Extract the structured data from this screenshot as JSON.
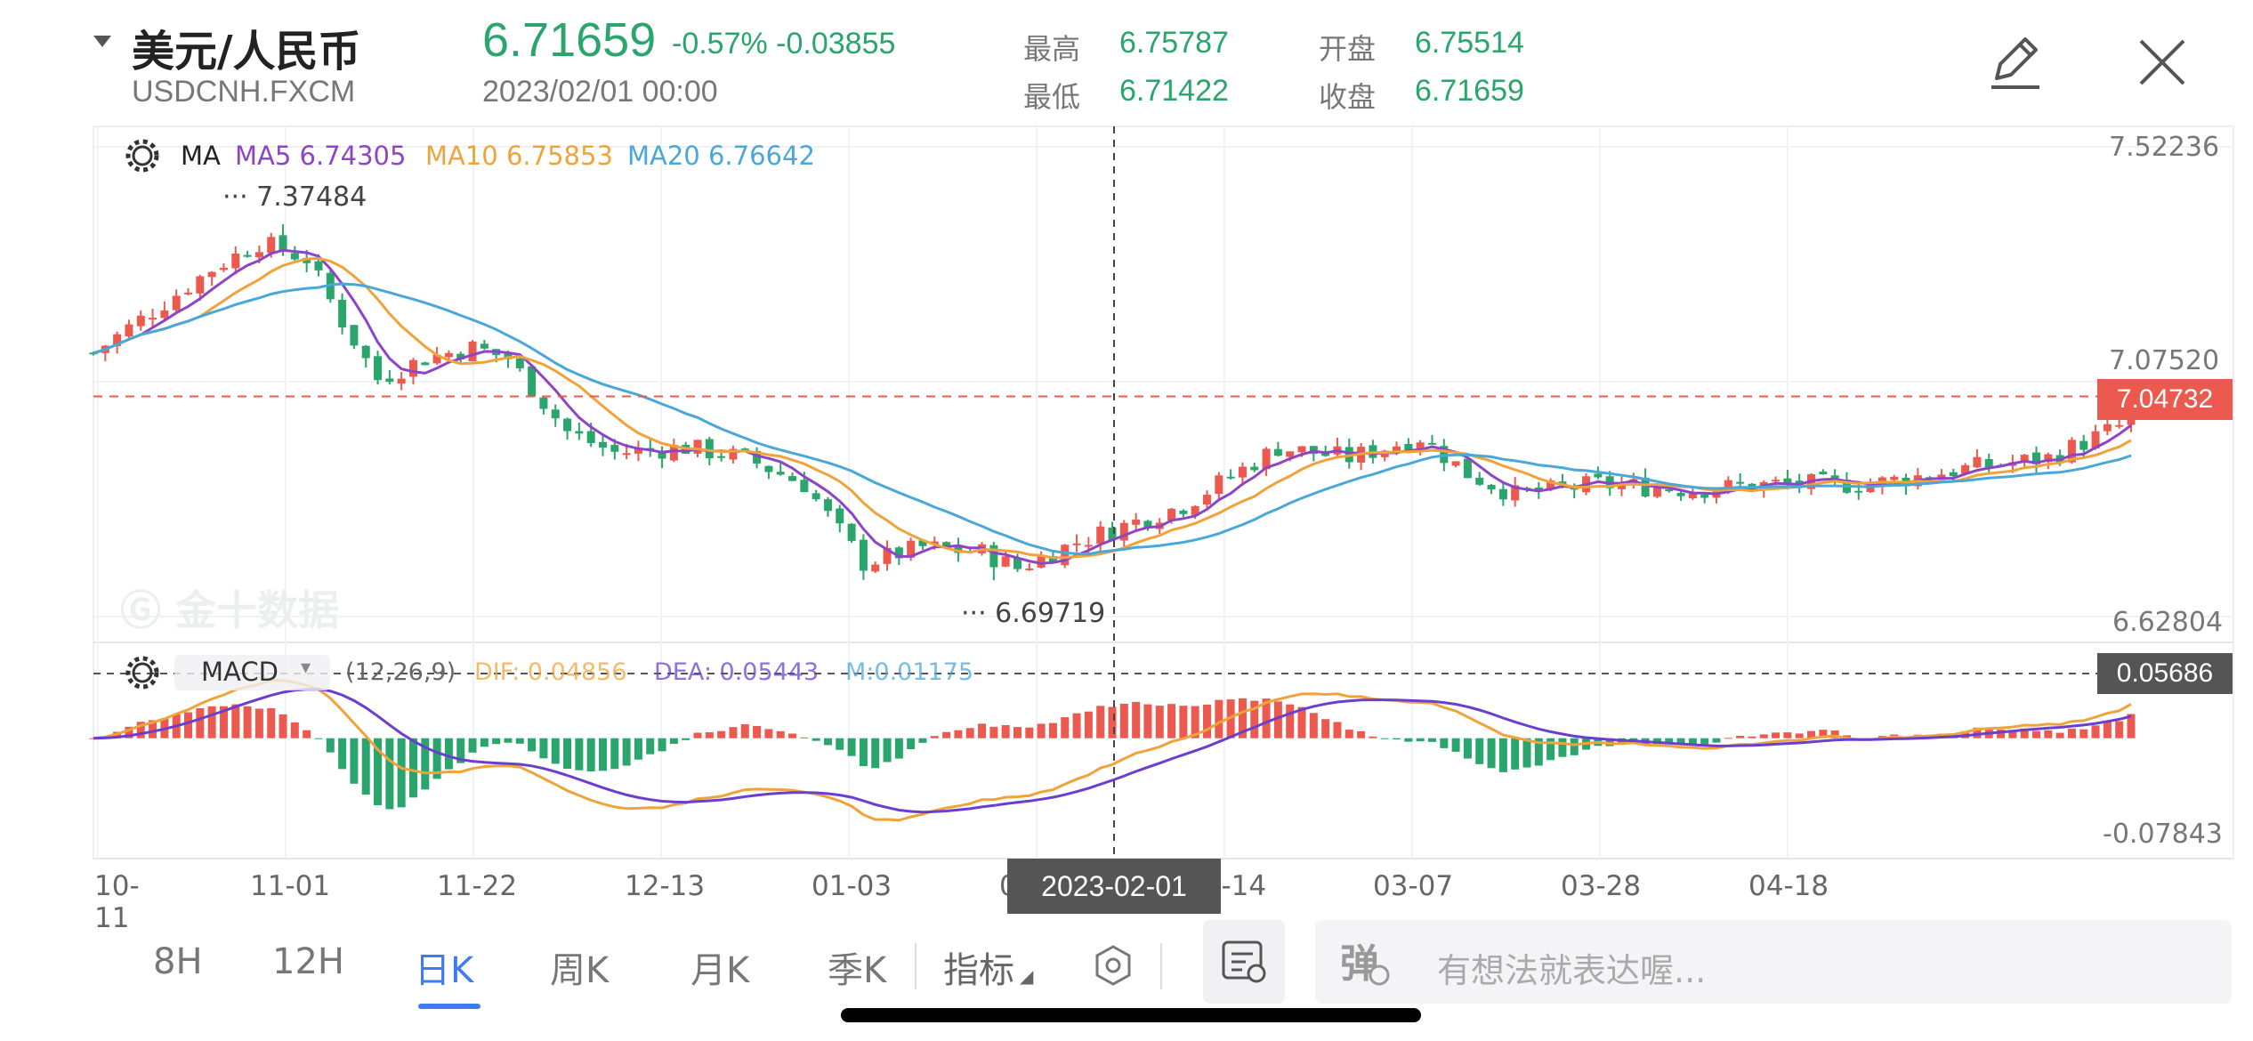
{
  "header": {
    "title": "美元/人民币",
    "symbol": "USDCNH.FXCM",
    "price": "6.71659",
    "change": "-0.57% -0.03855",
    "datetime": "2023/02/01 00:00",
    "stats": {
      "high_label": "最高",
      "high": "6.75787",
      "low_label": "最低",
      "low": "6.71422",
      "open_label": "开盘",
      "open": "6.75514",
      "close_label": "收盘",
      "close": "6.71659"
    }
  },
  "colors": {
    "up": "#ec5a4f",
    "down": "#2aa56c",
    "ma5": "#8e44c6",
    "ma10": "#f0a33a",
    "ma20": "#4aa8d8",
    "macd_dea": "#6a3fd0",
    "accent": "#3d7bf0"
  },
  "chart_data": {
    "type": "candlestick",
    "main": {
      "ma_label": "MA",
      "ma5_label": "MA5 6.74305",
      "ma10_label": "MA10 6.75853",
      "ma20_label": "MA20 6.76642",
      "ylim": [
        6.62804,
        7.52236
      ],
      "y_ticks": [
        "7.52236",
        "7.07520",
        "6.62804"
      ],
      "last_price": 7.04732,
      "last_price_label": "7.04732",
      "max_label": "7.37484",
      "max_value": 7.37484,
      "min_label": "6.69719",
      "min_value": 6.69719,
      "watermark": "金十数据"
    },
    "macd": {
      "label": "MACD",
      "params": "(12,26,9)",
      "dif_label": "DIF: 0.04856",
      "dea_label": "DEA: 0.05443",
      "m_label": "M:0.01175",
      "ylim": [
        -0.07843,
        0.05686
      ],
      "y_ticks": [
        "0.05686",
        "-0.07843"
      ],
      "current_label": "0.05686"
    },
    "x_ticks": [
      "10-11",
      "11-01",
      "11-22",
      "12-13",
      "01-03",
      "01-24",
      "02-14",
      "03-07",
      "03-28",
      "04-18"
    ],
    "crosshair_label": "2023-02-01"
  },
  "toolbar": {
    "tabs": [
      "8H",
      "12H",
      "日K",
      "周K",
      "月K",
      "季K"
    ],
    "active_tab": "日K",
    "indicator_label": "指标",
    "comment_placeholder": "有想法就表达喔..."
  }
}
